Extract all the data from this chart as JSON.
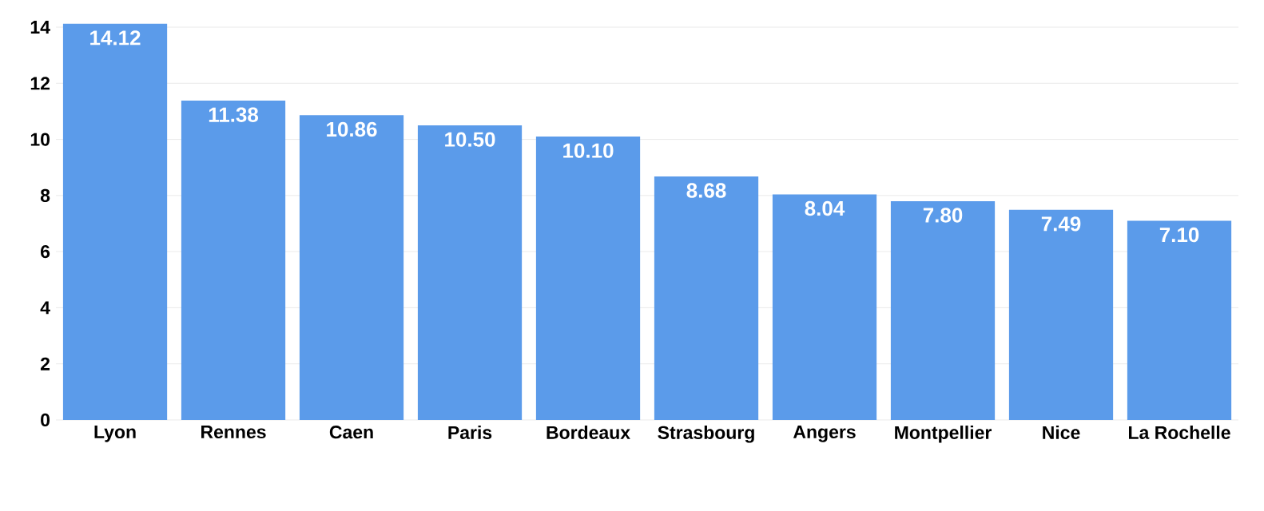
{
  "chart_data": {
    "type": "bar",
    "categories": [
      "Lyon",
      "Rennes",
      "Caen",
      "Paris",
      "Bordeaux",
      "Strasbourg",
      "Angers",
      "Montpellier",
      "Nice",
      "La Rochelle"
    ],
    "values": [
      14.12,
      11.38,
      10.86,
      10.5,
      10.1,
      8.68,
      8.04,
      7.8,
      7.49,
      7.1
    ],
    "value_labels": [
      "14.12",
      "11.38",
      "10.86",
      "10.50",
      "10.10",
      "8.68",
      "8.04",
      "7.80",
      "7.49",
      "7.10"
    ],
    "color": "#5b9bea",
    "ylim": [
      0,
      14.2
    ],
    "yticks": [
      0,
      2,
      4,
      6,
      8,
      10,
      12,
      14
    ],
    "grid": "y"
  }
}
